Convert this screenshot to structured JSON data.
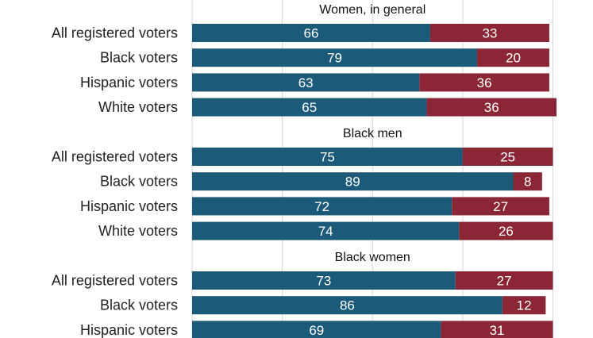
{
  "chart_data": {
    "type": "bar",
    "orientation": "horizontal",
    "stacked": true,
    "xlim": [
      0,
      100
    ],
    "grid": true,
    "colors": {
      "series_a": "#1b5a78",
      "series_b": "#8b2636"
    },
    "groups": [
      {
        "title": "Women, in general",
        "categories": [
          "All registered voters",
          "Black voters",
          "Hispanic voters",
          "White voters"
        ],
        "series": [
          {
            "values": [
              66,
              79,
              63,
              65
            ]
          },
          {
            "values": [
              33,
              20,
              36,
              36
            ]
          }
        ]
      },
      {
        "title": "Black men",
        "categories": [
          "All registered voters",
          "Black voters",
          "Hispanic voters",
          "White voters"
        ],
        "series": [
          {
            "values": [
              75,
              89,
              72,
              74
            ]
          },
          {
            "values": [
              25,
              8,
              27,
              26
            ]
          }
        ]
      },
      {
        "title": "Black women",
        "categories": [
          "All registered voters",
          "Black voters",
          "Hispanic voters"
        ],
        "series": [
          {
            "values": [
              73,
              86,
              69
            ]
          },
          {
            "values": [
              27,
              12,
              31
            ]
          }
        ]
      }
    ]
  }
}
